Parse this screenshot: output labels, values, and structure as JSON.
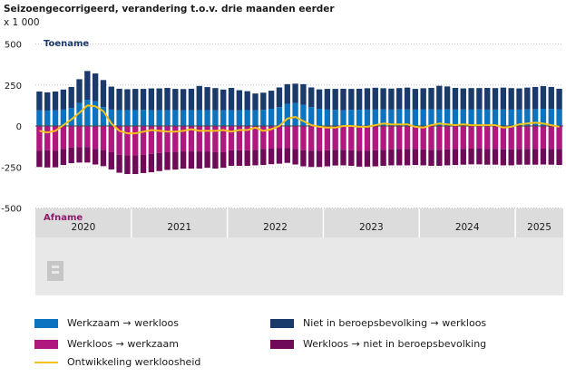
{
  "header": {
    "title": "Seizoengecorrigeerd, verandering t.o.v. drie maanden eerder",
    "unit": "x 1 000"
  },
  "labels": {
    "top": "Toename",
    "bottom": "Afname"
  },
  "colors": {
    "werkzaam_werkloos": "#0b73c0",
    "niet_bbv_werkloos": "#1a3a6b",
    "werkloos_werkzaam": "#b0177f",
    "werkloos_niet_bbv": "#6e0a57",
    "werkloosheid": "#f2c21a",
    "panel": "#e8e8e8"
  },
  "legend": [
    {
      "label": "Werkzaam → werkloos",
      "color": "#0b73c0"
    },
    {
      "label": "Niet in beroepsbevolking → werkloos",
      "color": "#1a3a6b"
    },
    {
      "label": "Werkloos → werkzaam",
      "color": "#b0177f"
    },
    {
      "label": "Werkloos → niet in beroepsbevolking",
      "color": "#6e0a57"
    },
    {
      "label": "Ontwikkeling werkloosheid",
      "color": "#f2c21a",
      "kind": "line"
    }
  ],
  "chart_data": {
    "type": "bar",
    "stacked": true,
    "ylim": [
      -500,
      500
    ],
    "yticks": [
      500,
      250,
      0,
      -250,
      -500
    ],
    "year_labels": [
      "2020",
      "2021",
      "2022",
      "2023",
      "2024",
      "2025"
    ],
    "periods_per_year": [
      12,
      12,
      12,
      12,
      12,
      6
    ],
    "series": [
      {
        "name": "Werkzaam → werkloos",
        "values": [
          95,
          93,
          95,
          100,
          110,
          140,
          160,
          150,
          115,
          100,
          97,
          96,
          96,
          98,
          97,
          96,
          97,
          96,
          97,
          97,
          96,
          97,
          96,
          97,
          97,
          96,
          97,
          96,
          98,
          105,
          115,
          135,
          140,
          130,
          115,
          105,
          100,
          98,
          97,
          98,
          99,
          100,
          100,
          101,
          100,
          101,
          101,
          100,
          102,
          101,
          100,
          101,
          100,
          101,
          100,
          101,
          100,
          100,
          101,
          100,
          100,
          101,
          103,
          105,
          104,
          102
        ]
      },
      {
        "name": "Niet in beroepsbevolking → werkloos",
        "values": [
          115,
          112,
          115,
          122,
          128,
          145,
          175,
          170,
          165,
          140,
          130,
          128,
          130,
          128,
          132,
          133,
          135,
          130,
          128,
          130,
          148,
          140,
          135,
          125,
          135,
          122,
          115,
          102,
          105,
          110,
          120,
          120,
          118,
          125,
          120,
          118,
          126,
          128,
          130,
          128,
          128,
          130,
          133,
          129,
          128,
          130,
          133,
          126,
          128,
          131,
          145,
          140,
          132,
          128,
          131,
          130,
          132,
          131,
          133,
          131,
          129,
          133,
          135,
          138,
          134,
          125
        ]
      },
      {
        "name": "Werkloos → werkzaam",
        "values": [
          -150,
          -148,
          -150,
          -140,
          -132,
          -128,
          -128,
          -140,
          -145,
          -160,
          -175,
          -178,
          -178,
          -175,
          -170,
          -165,
          -160,
          -158,
          -155,
          -155,
          -155,
          -155,
          -160,
          -160,
          -148,
          -148,
          -148,
          -145,
          -140,
          -138,
          -135,
          -135,
          -140,
          -148,
          -150,
          -150,
          -148,
          -145,
          -145,
          -148,
          -150,
          -150,
          -148,
          -145,
          -142,
          -140,
          -140,
          -140,
          -142,
          -145,
          -145,
          -142,
          -140,
          -140,
          -138,
          -138,
          -140,
          -140,
          -142,
          -142,
          -140,
          -140,
          -140,
          -138,
          -140,
          -140
        ]
      },
      {
        "name": "Werkloos → niet in beroepsbevolking",
        "values": [
          -100,
          -105,
          -102,
          -98,
          -95,
          -95,
          -95,
          -95,
          -100,
          -105,
          -110,
          -115,
          -115,
          -112,
          -112,
          -110,
          -108,
          -108,
          -105,
          -105,
          -105,
          -100,
          -100,
          -95,
          -95,
          -95,
          -95,
          -95,
          -98,
          -95,
          -95,
          -90,
          -95,
          -98,
          -100,
          -100,
          -98,
          -96,
          -95,
          -95,
          -98,
          -98,
          -98,
          -98,
          -98,
          -100,
          -100,
          -98,
          -98,
          -98,
          -98,
          -98,
          -98,
          -96,
          -96,
          -96,
          -96,
          -96,
          -98,
          -98,
          -96,
          -96,
          -96,
          -97,
          -96,
          -98
        ]
      },
      {
        "name": "Ontwikkeling werkloosheid",
        "type": "line",
        "values": [
          -30,
          -40,
          -30,
          5,
          40,
          80,
          125,
          120,
          90,
          15,
          -30,
          -45,
          -45,
          -35,
          -25,
          -30,
          -35,
          -35,
          -30,
          -20,
          -30,
          -30,
          -30,
          -25,
          -35,
          -25,
          -25,
          -10,
          -30,
          -20,
          0,
          45,
          55,
          30,
          5,
          -5,
          -10,
          -10,
          0,
          0,
          -5,
          -5,
          5,
          15,
          10,
          10,
          10,
          -5,
          -10,
          5,
          15,
          10,
          5,
          10,
          5,
          5,
          5,
          5,
          -10,
          -5,
          10,
          15,
          20,
          15,
          5,
          -5
        ]
      }
    ]
  }
}
